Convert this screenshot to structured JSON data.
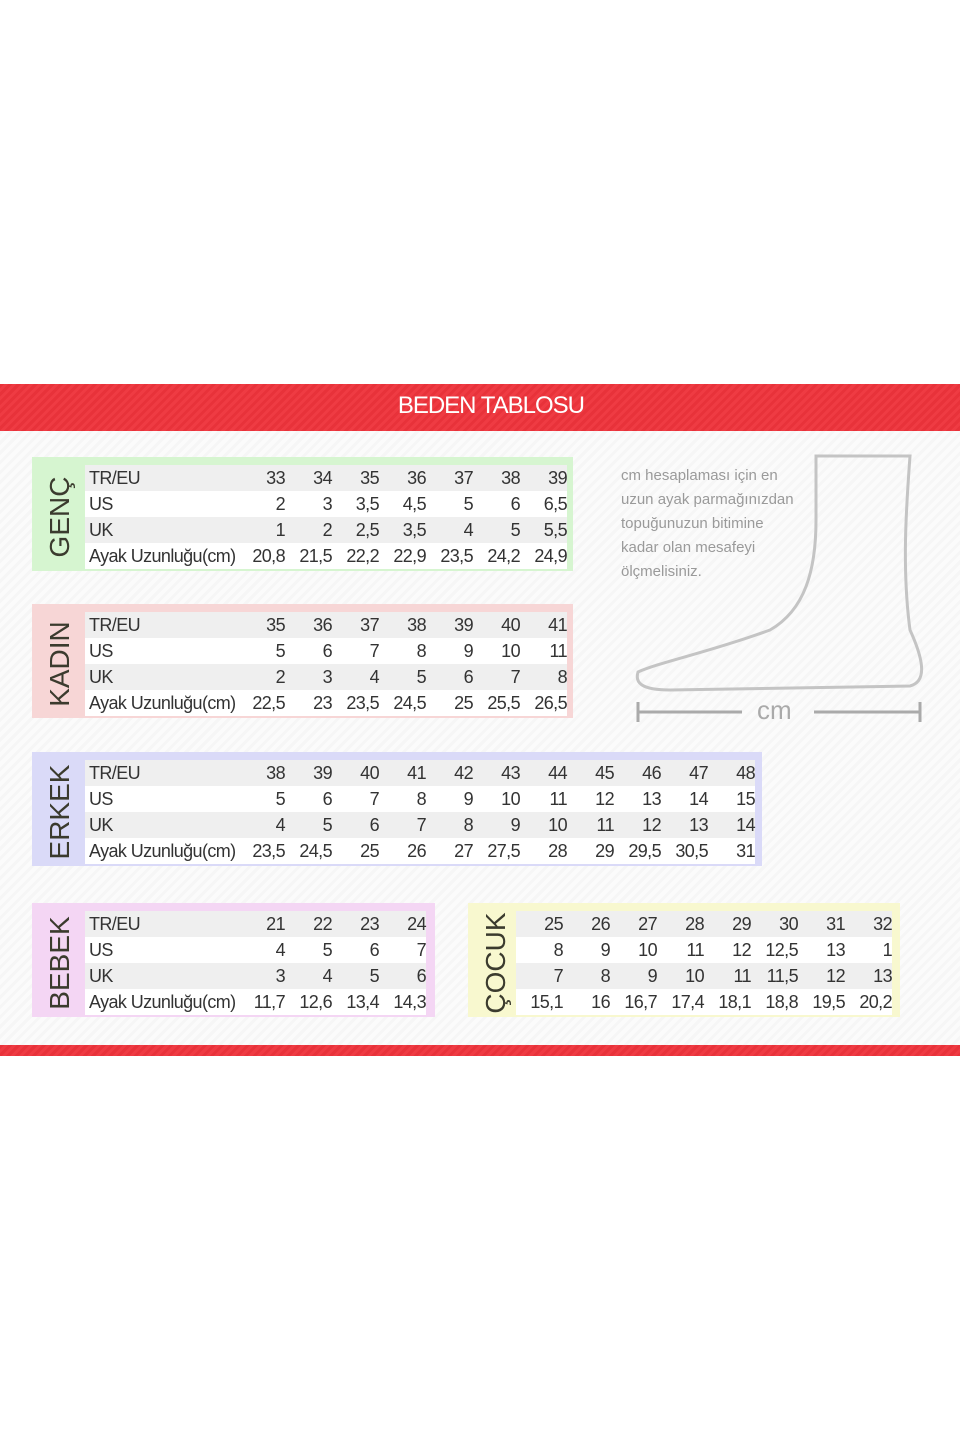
{
  "title": "BEDEN TABLOSU",
  "note_lines": [
    "cm hesaplaması için en",
    "uzun ayak parmağınızdan",
    "topuğunuzun bitimine",
    "kadar olan mesafeyi",
    "ölçmelisiniz."
  ],
  "measure_unit": "cm",
  "colors": {
    "banner": "#ec353d",
    "genc": "#d6f5d0",
    "kadin": "#f7d6d6",
    "erkek": "#dadaf8",
    "bebek": "#f4d6f4",
    "cocuk": "#f8f8cf"
  },
  "tables": [
    {
      "id": "genc",
      "label": "GENÇ",
      "rows": [
        {
          "label": "TR/EU",
          "values": [
            "33",
            "34",
            "35",
            "36",
            "37",
            "38",
            "39"
          ]
        },
        {
          "label": "US",
          "values": [
            "2",
            "3",
            "3,5",
            "4,5",
            "5",
            "6",
            "6,5"
          ]
        },
        {
          "label": "UK",
          "values": [
            "1",
            "2",
            "2,5",
            "3,5",
            "4",
            "5",
            "5,5"
          ]
        },
        {
          "label": "Ayak Uzunluğu(cm)",
          "values": [
            "20,8",
            "21,5",
            "22,2",
            "22,9",
            "23,5",
            "24,2",
            "24,9"
          ]
        }
      ]
    },
    {
      "id": "kadin",
      "label": "KADIN",
      "rows": [
        {
          "label": "TR/EU",
          "values": [
            "35",
            "36",
            "37",
            "38",
            "39",
            "40",
            "41"
          ]
        },
        {
          "label": "US",
          "values": [
            "5",
            "6",
            "7",
            "8",
            "9",
            "10",
            "11"
          ]
        },
        {
          "label": "UK",
          "values": [
            "2",
            "3",
            "4",
            "5",
            "6",
            "7",
            "8"
          ]
        },
        {
          "label": "Ayak Uzunluğu(cm)",
          "values": [
            "22,5",
            "23",
            "23,5",
            "24,5",
            "25",
            "25,5",
            "26,5"
          ]
        }
      ]
    },
    {
      "id": "erkek",
      "label": "ERKEK",
      "rows": [
        {
          "label": "TR/EU",
          "values": [
            "38",
            "39",
            "40",
            "41",
            "42",
            "43",
            "44",
            "45",
            "46",
            "47",
            "48"
          ]
        },
        {
          "label": "US",
          "values": [
            "5",
            "6",
            "7",
            "8",
            "9",
            "10",
            "11",
            "12",
            "13",
            "14",
            "15"
          ]
        },
        {
          "label": "UK",
          "values": [
            "4",
            "5",
            "6",
            "7",
            "8",
            "9",
            "10",
            "11",
            "12",
            "13",
            "14"
          ]
        },
        {
          "label": "Ayak Uzunluğu(cm)",
          "values": [
            "23,5",
            "24,5",
            "25",
            "26",
            "27",
            "27,5",
            "28",
            "29",
            "29,5",
            "30,5",
            "31"
          ]
        }
      ]
    },
    {
      "id": "bebek",
      "label": "BEBEK",
      "rows": [
        {
          "label": "TR/EU",
          "values": [
            "21",
            "22",
            "23",
            "24"
          ]
        },
        {
          "label": "US",
          "values": [
            "4",
            "5",
            "6",
            "7"
          ]
        },
        {
          "label": "UK",
          "values": [
            "3",
            "4",
            "5",
            "6"
          ]
        },
        {
          "label": "Ayak Uzunluğu(cm)",
          "values": [
            "11,7",
            "12,6",
            "13,4",
            "14,3"
          ]
        }
      ]
    },
    {
      "id": "cocuk",
      "label": "ÇOCUK",
      "rows": [
        {
          "values": [
            "25",
            "26",
            "27",
            "28",
            "29",
            "30",
            "31",
            "32"
          ]
        },
        {
          "values": [
            "8",
            "9",
            "10",
            "11",
            "12",
            "12,5",
            "13",
            "1"
          ]
        },
        {
          "values": [
            "7",
            "8",
            "9",
            "10",
            "11",
            "11,5",
            "12",
            "13"
          ]
        },
        {
          "values": [
            "15,1",
            "16",
            "16,7",
            "17,4",
            "18,1",
            "18,8",
            "19,5",
            "20,2"
          ]
        }
      ]
    }
  ]
}
